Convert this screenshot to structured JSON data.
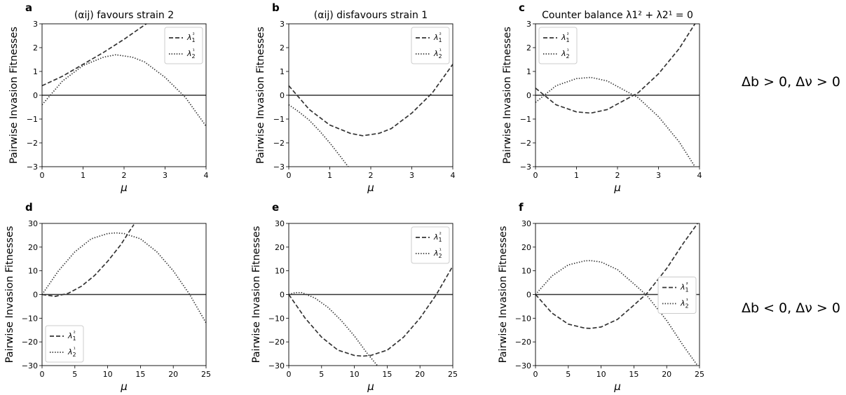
{
  "figure": {
    "row_labels": [
      "Δb > 0, Δν > 0",
      "Δb < 0, Δν > 0"
    ]
  },
  "chart_data": [
    {
      "type": "line",
      "panel": "a",
      "title": "(αij) favours strain 2",
      "xlabel": "μ",
      "ylabel": "Pairwise Invasion Fitnesses",
      "xlim": [
        0,
        4
      ],
      "ylim": [
        -3,
        3
      ],
      "xticks": [
        0,
        1,
        2,
        3,
        4
      ],
      "yticks": [
        -3,
        -2,
        -1,
        0,
        1,
        2,
        3
      ],
      "legend": "top-right",
      "series": [
        {
          "name": "λ1²",
          "style": "dashed",
          "x": [
            0,
            0.5,
            1,
            1.5,
            2,
            2.5,
            2.8
          ],
          "y": [
            0.4,
            0.8,
            1.3,
            1.8,
            2.35,
            2.95,
            3.3
          ]
        },
        {
          "name": "λ2¹",
          "style": "dotted",
          "x": [
            0,
            0.5,
            1,
            1.5,
            1.8,
            2.2,
            2.5,
            3,
            3.5,
            4
          ],
          "y": [
            -0.4,
            0.6,
            1.25,
            1.6,
            1.7,
            1.6,
            1.4,
            0.75,
            -0.1,
            -1.3
          ]
        }
      ]
    },
    {
      "type": "line",
      "panel": "b",
      "title": "(αij) disfavours strain 1",
      "xlabel": "μ",
      "ylabel": "Pairwise Invasion Fitnesses",
      "xlim": [
        0,
        4
      ],
      "ylim": [
        -3,
        3
      ],
      "xticks": [
        0,
        1,
        2,
        3,
        4
      ],
      "yticks": [
        -3,
        -2,
        -1,
        0,
        1,
        2,
        3
      ],
      "legend": "top-right",
      "series": [
        {
          "name": "λ1²",
          "style": "dashed",
          "x": [
            0,
            0.5,
            1,
            1.5,
            1.8,
            2.2,
            2.5,
            3,
            3.5,
            4
          ],
          "y": [
            0.4,
            -0.6,
            -1.25,
            -1.6,
            -1.7,
            -1.6,
            -1.4,
            -0.75,
            0.1,
            1.3
          ]
        },
        {
          "name": "λ2¹",
          "style": "dotted",
          "x": [
            0,
            0.25,
            0.5,
            0.75,
            1,
            1.25,
            1.45
          ],
          "y": [
            -0.4,
            -0.7,
            -1.05,
            -1.5,
            -2.0,
            -2.55,
            -3.0
          ]
        }
      ]
    },
    {
      "type": "line",
      "panel": "c",
      "title": "Counter balance λ1² + λ2¹ = 0",
      "xlabel": "μ",
      "ylabel": "Pairwise Invasion Fitnesses",
      "xlim": [
        0,
        4
      ],
      "ylim": [
        -3,
        3
      ],
      "xticks": [
        0,
        1,
        2,
        3,
        4
      ],
      "yticks": [
        -3,
        -2,
        -1,
        0,
        1,
        2,
        3
      ],
      "legend": "top-left",
      "series": [
        {
          "name": "λ1²",
          "style": "dashed",
          "x": [
            0,
            0.5,
            1,
            1.35,
            1.75,
            2.5,
            3,
            3.5,
            4
          ],
          "y": [
            0.3,
            -0.4,
            -0.7,
            -0.75,
            -0.6,
            0.1,
            0.9,
            1.95,
            3.3
          ]
        },
        {
          "name": "λ2¹",
          "style": "dotted",
          "x": [
            0,
            0.5,
            1,
            1.35,
            1.75,
            2.5,
            3,
            3.5,
            4
          ],
          "y": [
            -0.3,
            0.4,
            0.7,
            0.75,
            0.6,
            -0.1,
            -0.9,
            -1.95,
            -3.3
          ]
        }
      ]
    },
    {
      "type": "line",
      "panel": "d",
      "title": "",
      "xlabel": "μ",
      "ylabel": "Pairwise Invasion Fitnesses",
      "xlim": [
        0,
        25
      ],
      "ylim": [
        -30,
        30
      ],
      "xticks": [
        0,
        5,
        10,
        15,
        20,
        25
      ],
      "yticks": [
        -30,
        -20,
        -10,
        0,
        10,
        20,
        30
      ],
      "legend": "bottom-left",
      "series": [
        {
          "name": "λ1²",
          "style": "dashed",
          "x": [
            0,
            2,
            4,
            6,
            8,
            10,
            12,
            14,
            13.5
          ],
          "y": [
            0,
            -0.8,
            0.5,
            3.5,
            8,
            14,
            21,
            29.5,
            27.5
          ]
        },
        {
          "name": "λ2¹",
          "style": "dotted",
          "x": [
            0,
            2.5,
            5,
            7.5,
            10,
            11.25,
            12.5,
            15,
            17.5,
            20,
            22.5,
            25
          ],
          "y": [
            0,
            10,
            18,
            23.5,
            25.7,
            26,
            25.7,
            23.5,
            18,
            10,
            0,
            -12
          ]
        }
      ]
    },
    {
      "type": "line",
      "panel": "e",
      "title": "",
      "xlabel": "μ",
      "ylabel": "Pairwise Invasion Fitnesses",
      "xlim": [
        0,
        25
      ],
      "ylim": [
        -30,
        30
      ],
      "xticks": [
        0,
        5,
        10,
        15,
        20,
        25
      ],
      "yticks": [
        -30,
        -20,
        -10,
        0,
        10,
        20,
        30
      ],
      "legend": "top-right",
      "series": [
        {
          "name": "λ1²",
          "style": "dashed",
          "x": [
            0,
            2.5,
            5,
            7.5,
            10,
            11.25,
            12.5,
            15,
            17.5,
            20,
            22.5,
            25
          ],
          "y": [
            0,
            -10,
            -18,
            -23.5,
            -25.7,
            -26,
            -25.7,
            -23.5,
            -18,
            -10,
            0,
            12
          ]
        },
        {
          "name": "λ2¹",
          "style": "dotted",
          "x": [
            0,
            1,
            2,
            4,
            6,
            8,
            10,
            12,
            13.5
          ],
          "y": [
            0,
            0.8,
            0.8,
            -1.5,
            -5.5,
            -11,
            -17.5,
            -25,
            -30
          ]
        }
      ]
    },
    {
      "type": "line",
      "panel": "f",
      "title": "",
      "xlabel": "μ",
      "ylabel": "Pairwise Invasion Fitnesses",
      "xlim": [
        0,
        25
      ],
      "ylim": [
        -30,
        30
      ],
      "xticks": [
        0,
        5,
        10,
        15,
        20,
        25
      ],
      "yticks": [
        -30,
        -20,
        -10,
        0,
        10,
        20,
        30
      ],
      "legend": "center-right",
      "series": [
        {
          "name": "λ1²",
          "style": "dashed",
          "x": [
            0,
            2.5,
            5,
            7.5,
            8.4,
            10,
            12.5,
            15,
            17,
            20,
            22.5,
            24.7
          ],
          "y": [
            0,
            -7.8,
            -12.5,
            -14.2,
            -14.3,
            -13.7,
            -10.5,
            -4.5,
            0.5,
            11,
            21.5,
            30
          ]
        },
        {
          "name": "λ2¹",
          "style": "dotted",
          "x": [
            0,
            2.5,
            5,
            7.5,
            8.4,
            10,
            12.5,
            15,
            17,
            20,
            22.5,
            24.7
          ],
          "y": [
            0,
            7.8,
            12.5,
            14.2,
            14.3,
            13.7,
            10.5,
            4.5,
            -0.5,
            -11,
            -21.5,
            -30
          ]
        }
      ]
    }
  ]
}
